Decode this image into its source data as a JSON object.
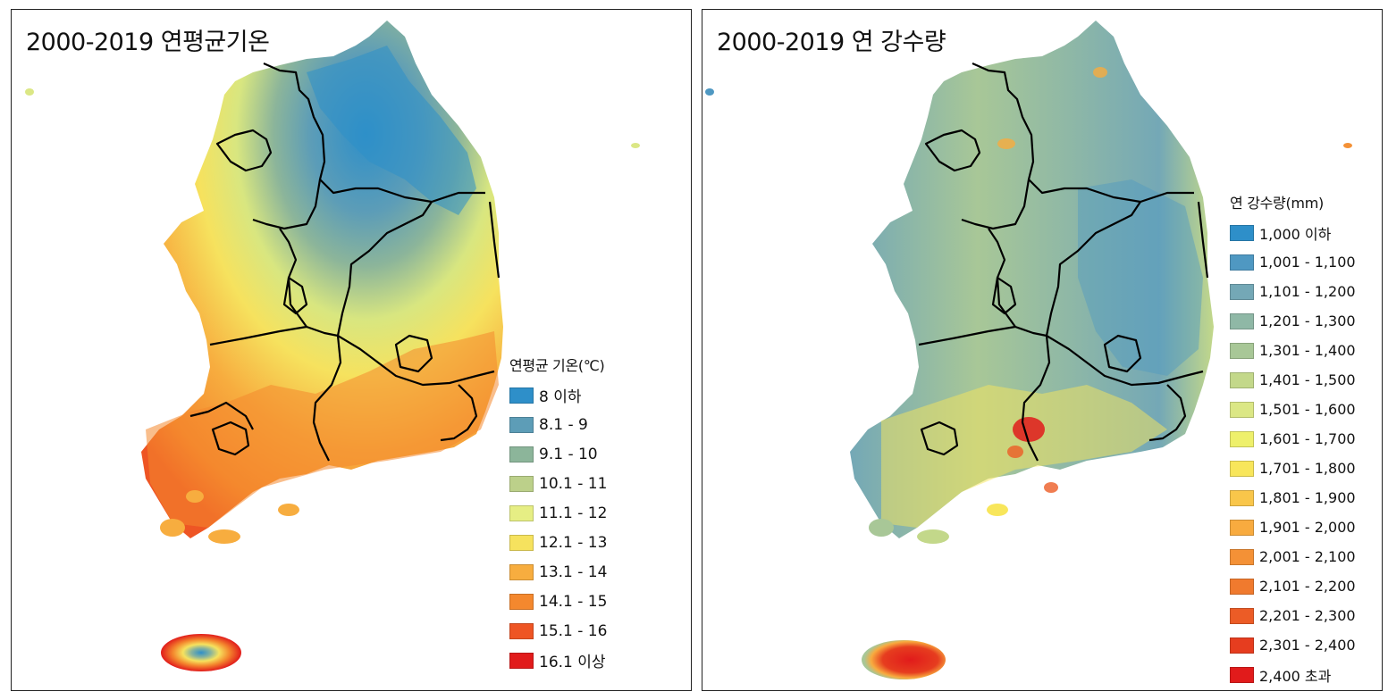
{
  "left_map": {
    "title": "2000-2019 연평균기온",
    "legend_title": "연평균 기온(℃)",
    "legend": [
      {
        "label": "8 이하",
        "color": "#2e8fc9"
      },
      {
        "label": "8.1 - 9",
        "color": "#5d9db7"
      },
      {
        "label": "9.1 - 10",
        "color": "#8cb59a"
      },
      {
        "label": "10.1 - 11",
        "color": "#bcd08a"
      },
      {
        "label": "11.1 - 12",
        "color": "#e6ee84"
      },
      {
        "label": "12.1 - 13",
        "color": "#f6e25e"
      },
      {
        "label": "13.1 - 14",
        "color": "#f7ad3f"
      },
      {
        "label": "14.1 - 15",
        "color": "#f4882e"
      },
      {
        "label": "15.1 - 16",
        "color": "#ee5524"
      },
      {
        "label": "16.1 이상",
        "color": "#e11b1b"
      }
    ]
  },
  "right_map": {
    "title": "2000-2019 연 강수량",
    "legend_title": "연 강수량(mm)",
    "legend": [
      {
        "label": "1,000 이하",
        "color": "#2e8fc9"
      },
      {
        "label": "1,001 - 1,100",
        "color": "#4f98c2"
      },
      {
        "label": "1,101 - 1,200",
        "color": "#74a8b6"
      },
      {
        "label": "1,201 - 1,300",
        "color": "#8fb8a6"
      },
      {
        "label": "1,301 - 1,400",
        "color": "#a8c797"
      },
      {
        "label": "1,401 - 1,500",
        "color": "#c3d88a"
      },
      {
        "label": "1,501 - 1,600",
        "color": "#dbe785"
      },
      {
        "label": "1,601 - 1,700",
        "color": "#eef06b"
      },
      {
        "label": "1,701 - 1,800",
        "color": "#f8e65b"
      },
      {
        "label": "1,801 - 1,900",
        "color": "#f9c64a"
      },
      {
        "label": "1,901 - 2,000",
        "color": "#f8ab3f"
      },
      {
        "label": "2,001 - 2,100",
        "color": "#f49136"
      },
      {
        "label": "2,101 - 2,200",
        "color": "#f07a2e"
      },
      {
        "label": "2,201 - 2,300",
        "color": "#ec5c26"
      },
      {
        "label": "2,301 - 2,400",
        "color": "#e63d1f"
      },
      {
        "label": "2,400 초과",
        "color": "#e11b1b"
      }
    ]
  }
}
